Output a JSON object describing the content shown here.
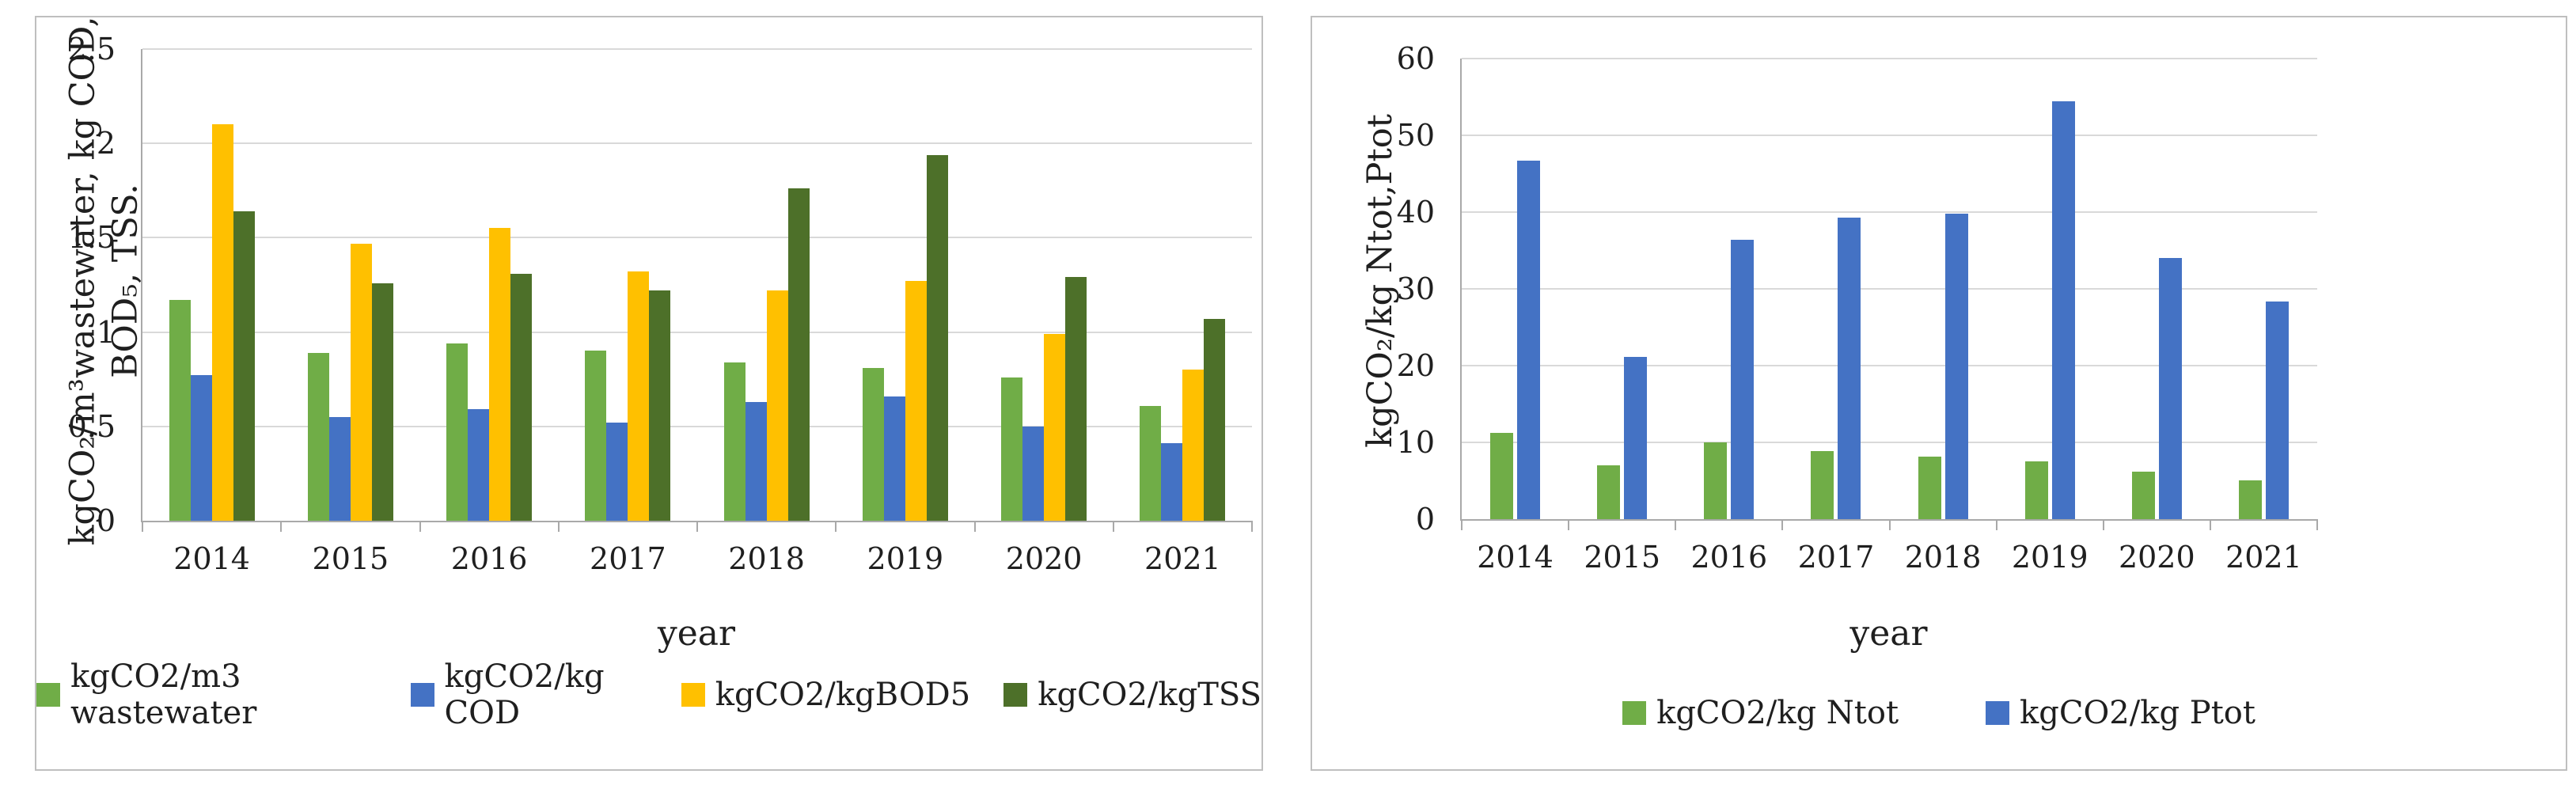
{
  "figure": {
    "background": "#ffffff",
    "panel_border_color": "#bfbfbf",
    "gridline_color": "#d9d9d9",
    "axis_color": "#a9a9a9",
    "text_color": "#1f1f1f"
  },
  "chart_data": [
    {
      "id": "wastewater-cod-bod-tss",
      "type": "bar",
      "title": "",
      "xlabel": "year",
      "ylabel_lines": [
        "kgCO₂/m³wastewater, kg COD,",
        "BOD₅, TSS."
      ],
      "ylim": [
        0,
        2.5
      ],
      "grid": true,
      "legend_position": "bottom",
      "yticks": [
        {
          "label": "2.5",
          "value": 2.5
        },
        {
          "label": "2",
          "value": 2
        },
        {
          "label": "1.5",
          "value": 1.5
        },
        {
          "label": "1",
          "value": 1
        },
        {
          "label": "0.5",
          "value": 0.5
        },
        {
          "label": "0",
          "value": 0
        }
      ],
      "categories": [
        "2014",
        "2015",
        "2016",
        "2017",
        "2018",
        "2019",
        "2020",
        "2021"
      ],
      "series": [
        {
          "name": "kgCO2/m3 wastewater",
          "color": "#70AD47",
          "values": [
            1.17,
            0.89,
            0.94,
            0.9,
            0.84,
            0.81,
            0.76,
            0.61
          ]
        },
        {
          "name": "kgCO2/kg COD",
          "color": "#4472C4",
          "values": [
            0.77,
            0.55,
            0.59,
            0.52,
            0.63,
            0.66,
            0.5,
            0.41
          ]
        },
        {
          "name": "kgCO2/kgBOD5",
          "color": "#FFC000",
          "values": [
            2.1,
            1.47,
            1.55,
            1.32,
            1.22,
            1.27,
            0.99,
            0.8
          ]
        },
        {
          "name": "kgCO2/kgTSS",
          "color": "#4D7029",
          "values": [
            1.64,
            1.26,
            1.31,
            1.22,
            1.76,
            1.94,
            1.29,
            1.07
          ]
        }
      ]
    },
    {
      "id": "ntot-ptot",
      "type": "bar",
      "title": "",
      "xlabel": "year",
      "ylabel_lines": [
        "kgCO₂/kg Ntot,Ptot"
      ],
      "ylim": [
        0,
        60
      ],
      "grid": true,
      "legend_position": "bottom",
      "yticks": [
        {
          "label": "60",
          "value": 60
        },
        {
          "label": "50",
          "value": 50
        },
        {
          "label": "40",
          "value": 40
        },
        {
          "label": "30",
          "value": 30
        },
        {
          "label": "20",
          "value": 20
        },
        {
          "label": "10",
          "value": 10
        },
        {
          "label": "0",
          "value": 0
        }
      ],
      "categories": [
        "2014",
        "2015",
        "2016",
        "2017",
        "2018",
        "2019",
        "2020",
        "2021"
      ],
      "series": [
        {
          "name": "kgCO2/kg Ntot",
          "color": "#70AD47",
          "values": [
            11.2,
            7.0,
            10.0,
            8.9,
            8.1,
            7.5,
            6.2,
            5.1
          ]
        },
        {
          "name": "kgCO2/kg Ptot",
          "color": "#4472C4",
          "values": [
            46.7,
            21.1,
            36.4,
            39.3,
            39.8,
            54.4,
            34.0,
            28.4
          ]
        }
      ]
    }
  ]
}
